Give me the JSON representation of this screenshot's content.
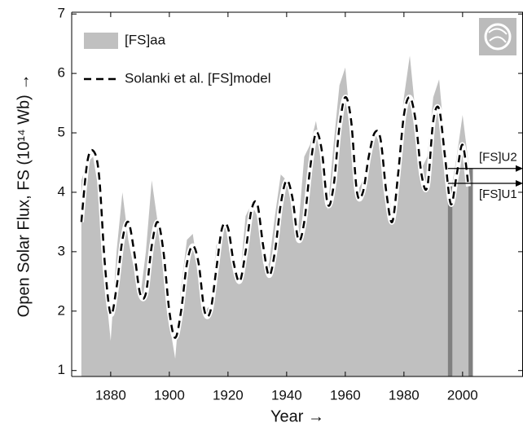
{
  "chart_data": {
    "type": "area-line",
    "x_label": "Year →",
    "y_label": "Open Solar Flux, FS (10¹⁴ Wb) →",
    "x": [
      1870,
      1872,
      1874,
      1876,
      1878,
      1880,
      1882,
      1884,
      1886,
      1888,
      1890,
      1892,
      1894,
      1896,
      1898,
      1900,
      1902,
      1904,
      1906,
      1908,
      1910,
      1912,
      1914,
      1916,
      1918,
      1920,
      1922,
      1924,
      1926,
      1928,
      1930,
      1932,
      1934,
      1936,
      1938,
      1940,
      1942,
      1944,
      1946,
      1948,
      1950,
      1952,
      1954,
      1956,
      1958,
      1960,
      1962,
      1964,
      1966,
      1968,
      1970,
      1972,
      1974,
      1976,
      1978,
      1980,
      1982,
      1984,
      1986,
      1988,
      1990,
      1992,
      1994,
      1996,
      1998,
      2000,
      2002
    ],
    "series": [
      {
        "name": "[FS]aa",
        "style": "area",
        "color": "#c0c0c0",
        "values": [
          4.2,
          4.5,
          4.6,
          4.0,
          2.5,
          1.5,
          3.0,
          4.0,
          3.2,
          2.7,
          2.2,
          3.0,
          4.2,
          3.5,
          2.8,
          1.8,
          1.2,
          2.4,
          3.2,
          3.3,
          2.6,
          2.0,
          2.1,
          3.1,
          3.4,
          3.5,
          2.6,
          2.5,
          3.6,
          3.8,
          3.6,
          2.8,
          2.8,
          3.6,
          4.3,
          4.2,
          3.8,
          3.4,
          4.6,
          4.8,
          5.2,
          4.6,
          3.7,
          4.8,
          5.8,
          6.1,
          5.0,
          4.0,
          4.2,
          4.8,
          5.0,
          4.8,
          4.3,
          3.6,
          4.7,
          5.6,
          6.3,
          5.3,
          4.4,
          4.6,
          5.6,
          5.9,
          4.8,
          4.0,
          4.6,
          5.3,
          4.5
        ]
      },
      {
        "name": "Solanki et al. [FS]model",
        "style": "dashed",
        "color": "#000000",
        "values": [
          3.5,
          4.5,
          4.7,
          4.3,
          2.8,
          1.95,
          2.4,
          3.2,
          3.5,
          3.0,
          2.3,
          2.3,
          3.1,
          3.5,
          3.0,
          2.0,
          1.55,
          2.0,
          2.8,
          3.1,
          2.8,
          2.0,
          2.0,
          2.7,
          3.4,
          3.4,
          2.8,
          2.5,
          3.0,
          3.7,
          3.8,
          3.1,
          2.6,
          3.0,
          3.8,
          4.2,
          3.9,
          3.2,
          3.5,
          4.4,
          5.0,
          4.7,
          3.8,
          4.1,
          5.1,
          5.6,
          5.2,
          4.0,
          4.0,
          4.6,
          5.0,
          4.9,
          4.0,
          3.5,
          4.3,
          5.3,
          5.6,
          5.2,
          4.3,
          4.1,
          5.2,
          5.4,
          4.6,
          3.8,
          4.3,
          4.8,
          4.1
        ]
      }
    ],
    "bands": [
      {
        "x": [
          1995,
          1996.5
        ],
        "top": 4.1,
        "color": "#808080"
      },
      {
        "x": [
          2002,
          2003.5
        ],
        "top": 4.4,
        "color": "#808080"
      }
    ],
    "annotations": [
      {
        "text": "[FS]U2",
        "y": 4.4
      },
      {
        "text": "[FS]U1",
        "y": 4.15
      }
    ],
    "xlim": [
      1866.7,
      2020.6
    ],
    "ylim": [
      0.9,
      7.03
    ],
    "xticks": [
      1880,
      1900,
      1920,
      1940,
      1960,
      1980,
      2000
    ],
    "yticks": [
      1,
      2,
      3,
      4,
      5,
      6,
      7
    ]
  }
}
